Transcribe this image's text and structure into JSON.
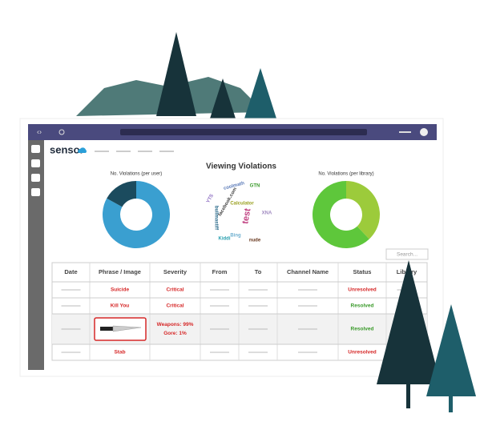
{
  "header": {
    "logo": "senso."
  },
  "title": "Viewing Violations",
  "charts": [
    {
      "type": "pie",
      "title": "No. Violations (per user)",
      "values": [
        83,
        17
      ],
      "colors": [
        "#3a9fd0",
        "#1b4b5e"
      ]
    },
    {
      "type": "pie",
      "title": "No. Violations (per library)",
      "values": [
        38,
        62
      ],
      "colors": [
        "#9ccb3b",
        "#5ec73b"
      ]
    }
  ],
  "word_cloud": [
    "coolmath",
    "GTN",
    "facebook.com",
    "Calculator",
    "test",
    "bullmastiff",
    "Kiddi",
    "nude",
    "XNA",
    "YTS",
    "Bing"
  ],
  "search_placeholder": "Search...",
  "table": {
    "columns": [
      "Date",
      "Phrase / Image",
      "Severity",
      "From",
      "To",
      "Channel Name",
      "Status",
      "Library"
    ],
    "rows": [
      {
        "phrase": "Suicide",
        "severity": [
          "Critical"
        ],
        "status": "Unresolved"
      },
      {
        "phrase": "Kill You",
        "severity": [
          "Critical"
        ],
        "status": "Resolved"
      },
      {
        "severity": [
          "Weapons: 99%",
          "Gore: 1%"
        ],
        "status": "Resolved"
      },
      {
        "phrase": "Stab",
        "status": "Unresolved"
      }
    ]
  }
}
